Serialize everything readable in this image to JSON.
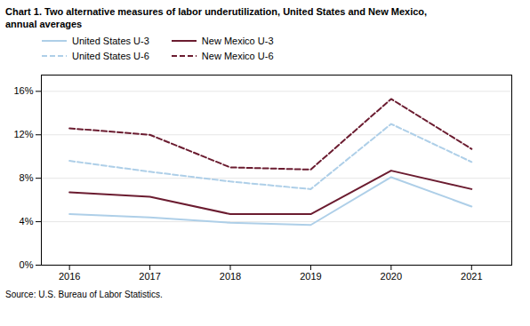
{
  "chart_data": {
    "type": "line",
    "title": "Chart 1. Two alternative measures of labor underutilization, United States and New Mexico,\nannual averages",
    "source": "Source: U.S. Bureau of Labor Statistics.",
    "x": [
      2016,
      2017,
      2018,
      2019,
      2020,
      2021
    ],
    "series": [
      {
        "name": "United States U-3",
        "color": "#aecfe8",
        "line_style": "solid",
        "values": [
          4.7,
          4.4,
          3.9,
          3.7,
          8.1,
          5.4
        ]
      },
      {
        "name": "United States U-6",
        "color": "#aecfe8",
        "line_style": "dashed",
        "values": [
          9.6,
          8.6,
          7.7,
          7.0,
          13.0,
          9.5
        ]
      },
      {
        "name": "New Mexico U-3",
        "color": "#6b1c30",
        "line_style": "solid",
        "values": [
          6.7,
          6.3,
          4.7,
          4.7,
          8.7,
          7.0
        ]
      },
      {
        "name": "New Mexico U-6",
        "color": "#6b1c30",
        "line_style": "dashed",
        "values": [
          12.6,
          12.0,
          9.0,
          8.8,
          15.3,
          10.7
        ]
      }
    ],
    "xlim": [
      2015.65,
      2021.5
    ],
    "xticks": [
      2016,
      2017,
      2018,
      2019,
      2020,
      2021
    ],
    "ylim": [
      0,
      17.5
    ],
    "yticks": [
      {
        "value": 0,
        "label": "0%"
      },
      {
        "value": 4,
        "label": "4%"
      },
      {
        "value": 8,
        "label": "8%"
      },
      {
        "value": 12,
        "label": "12%"
      },
      {
        "value": 16,
        "label": "16%"
      }
    ],
    "grid": true,
    "legend": "top"
  }
}
